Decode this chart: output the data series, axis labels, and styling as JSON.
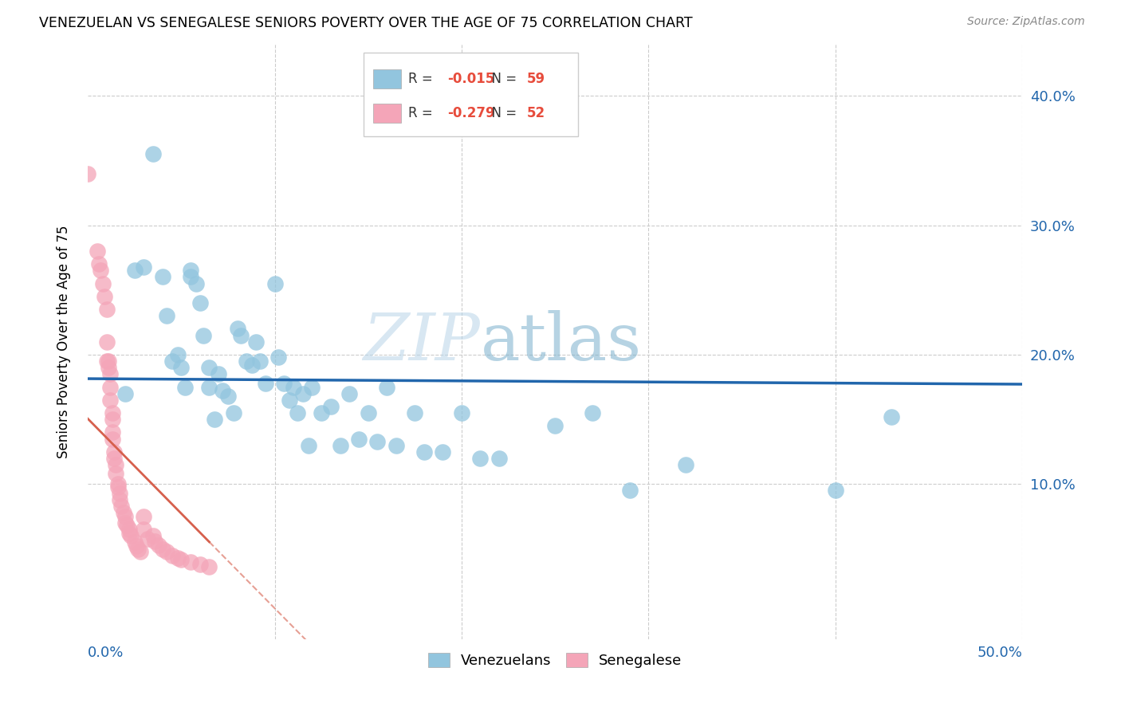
{
  "title": "VENEZUELAN VS SENEGALESE SENIORS POVERTY OVER THE AGE OF 75 CORRELATION CHART",
  "source": "Source: ZipAtlas.com",
  "ylabel": "Seniors Poverty Over the Age of 75",
  "xlim": [
    0.0,
    0.5
  ],
  "ylim": [
    -0.02,
    0.44
  ],
  "venezuelan_R": "-0.015",
  "venezuelan_N": "59",
  "senegalese_R": "-0.279",
  "senegalese_N": "52",
  "blue_color": "#92c5de",
  "pink_color": "#f4a5b8",
  "blue_line_color": "#2166ac",
  "pink_line_color": "#d6604d",
  "background_color": "#ffffff",
  "watermark_zip": "ZIP",
  "watermark_atlas": "atlas",
  "venezuelan_x": [
    0.02,
    0.025,
    0.03,
    0.035,
    0.04,
    0.042,
    0.045,
    0.048,
    0.05,
    0.052,
    0.055,
    0.055,
    0.058,
    0.06,
    0.062,
    0.065,
    0.065,
    0.068,
    0.07,
    0.072,
    0.075,
    0.078,
    0.08,
    0.082,
    0.085,
    0.088,
    0.09,
    0.092,
    0.095,
    0.1,
    0.102,
    0.105,
    0.108,
    0.11,
    0.112,
    0.115,
    0.118,
    0.12,
    0.125,
    0.13,
    0.135,
    0.14,
    0.145,
    0.15,
    0.155,
    0.16,
    0.165,
    0.175,
    0.18,
    0.19,
    0.2,
    0.21,
    0.22,
    0.25,
    0.27,
    0.29,
    0.32,
    0.4,
    0.43
  ],
  "venezuelan_y": [
    0.17,
    0.265,
    0.268,
    0.355,
    0.26,
    0.23,
    0.195,
    0.2,
    0.19,
    0.175,
    0.265,
    0.26,
    0.255,
    0.24,
    0.215,
    0.19,
    0.175,
    0.15,
    0.185,
    0.172,
    0.168,
    0.155,
    0.22,
    0.215,
    0.195,
    0.192,
    0.21,
    0.195,
    0.178,
    0.255,
    0.198,
    0.178,
    0.165,
    0.175,
    0.155,
    0.17,
    0.13,
    0.175,
    0.155,
    0.16,
    0.13,
    0.17,
    0.135,
    0.155,
    0.133,
    0.175,
    0.13,
    0.155,
    0.125,
    0.125,
    0.155,
    0.12,
    0.12,
    0.145,
    0.155,
    0.095,
    0.115,
    0.095,
    0.152
  ],
  "senegalese_x": [
    0.0,
    0.005,
    0.006,
    0.007,
    0.008,
    0.009,
    0.01,
    0.01,
    0.01,
    0.011,
    0.011,
    0.012,
    0.012,
    0.012,
    0.013,
    0.013,
    0.013,
    0.013,
    0.014,
    0.014,
    0.015,
    0.015,
    0.016,
    0.016,
    0.017,
    0.017,
    0.018,
    0.019,
    0.02,
    0.02,
    0.021,
    0.022,
    0.022,
    0.023,
    0.025,
    0.026,
    0.027,
    0.028,
    0.03,
    0.03,
    0.032,
    0.035,
    0.036,
    0.038,
    0.04,
    0.042,
    0.045,
    0.048,
    0.05,
    0.055,
    0.06,
    0.065
  ],
  "senegalese_y": [
    0.34,
    0.28,
    0.27,
    0.265,
    0.255,
    0.245,
    0.235,
    0.21,
    0.195,
    0.195,
    0.19,
    0.185,
    0.175,
    0.165,
    0.155,
    0.15,
    0.14,
    0.135,
    0.125,
    0.12,
    0.115,
    0.108,
    0.1,
    0.098,
    0.093,
    0.088,
    0.083,
    0.078,
    0.075,
    0.07,
    0.068,
    0.065,
    0.062,
    0.06,
    0.055,
    0.052,
    0.05,
    0.048,
    0.075,
    0.065,
    0.058,
    0.06,
    0.056,
    0.053,
    0.05,
    0.048,
    0.045,
    0.043,
    0.042,
    0.04,
    0.038,
    0.036
  ]
}
